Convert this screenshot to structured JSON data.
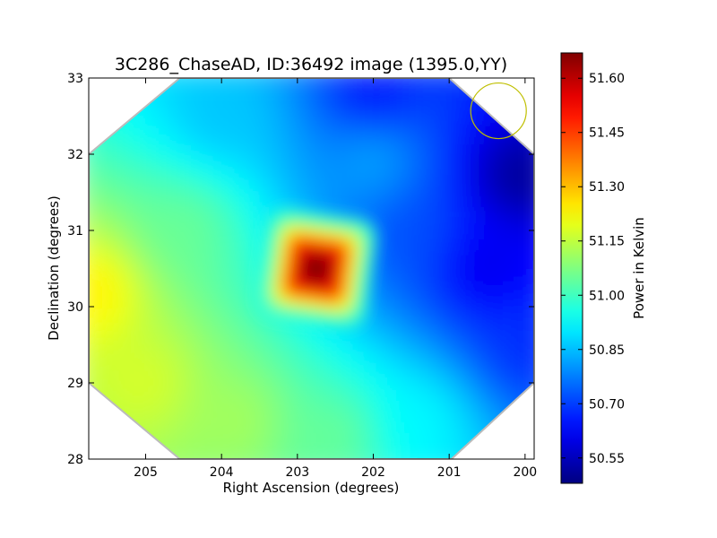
{
  "chart_data": {
    "type": "heatmap",
    "title": "3C286_ChaseAD, ID:36492 image (1395.0,YY)",
    "xlabel": "Right Ascension (degrees)",
    "ylabel": "Declination (degrees)",
    "xlim": [
      205.75,
      199.88
    ],
    "ylim": [
      28,
      33
    ],
    "x_ticks": [
      205,
      204,
      203,
      202,
      201,
      200
    ],
    "y_ticks": [
      28,
      29,
      30,
      31,
      32,
      33
    ],
    "colorbar": {
      "label": "Power in Kelvin",
      "colormap": "jet",
      "range": [
        50.48,
        51.67
      ],
      "ticks": [
        51.6,
        51.45,
        51.3,
        51.15,
        51.0,
        50.85,
        50.7,
        50.55
      ],
      "tick_labels": [
        "51.60",
        "51.45",
        "51.30",
        "51.15",
        "51.00",
        "50.85",
        "50.70",
        "50.55"
      ]
    },
    "footprint_corners_radec": [
      [
        204.55,
        28
      ],
      [
        200.97,
        28
      ],
      [
        199.88,
        29.0
      ],
      [
        199.88,
        32.0
      ],
      [
        201.0,
        33
      ],
      [
        204.55,
        33
      ],
      [
        205.75,
        32.0
      ],
      [
        205.75,
        29.0
      ]
    ],
    "peak": {
      "ra": 202.75,
      "dec": 30.5,
      "value": 51.67
    },
    "field_samples": [
      {
        "ra": 205.7,
        "dec": 30.2,
        "value": 51.25
      },
      {
        "ra": 205.0,
        "dec": 29.0,
        "value": 51.18
      },
      {
        "ra": 204.5,
        "dec": 31.0,
        "value": 51.05
      },
      {
        "ra": 204.0,
        "dec": 32.5,
        "value": 50.86
      },
      {
        "ra": 203.8,
        "dec": 28.5,
        "value": 51.12
      },
      {
        "ra": 202.5,
        "dec": 28.3,
        "value": 51.05
      },
      {
        "ra": 201.4,
        "dec": 28.5,
        "value": 50.92
      },
      {
        "ra": 201.5,
        "dec": 31.0,
        "value": 50.72
      },
      {
        "ra": 202.0,
        "dec": 31.9,
        "value": 50.82
      },
      {
        "ra": 202.0,
        "dec": 32.8,
        "value": 50.65
      },
      {
        "ra": 200.5,
        "dec": 30.5,
        "value": 50.6
      },
      {
        "ra": 200.1,
        "dec": 31.7,
        "value": 50.5
      },
      {
        "ra": 200.0,
        "dec": 29.5,
        "value": 50.68
      }
    ],
    "beam_circle": {
      "ra": 200.35,
      "dec": 32.57,
      "color": "#bfbf00"
    },
    "grid": false
  }
}
